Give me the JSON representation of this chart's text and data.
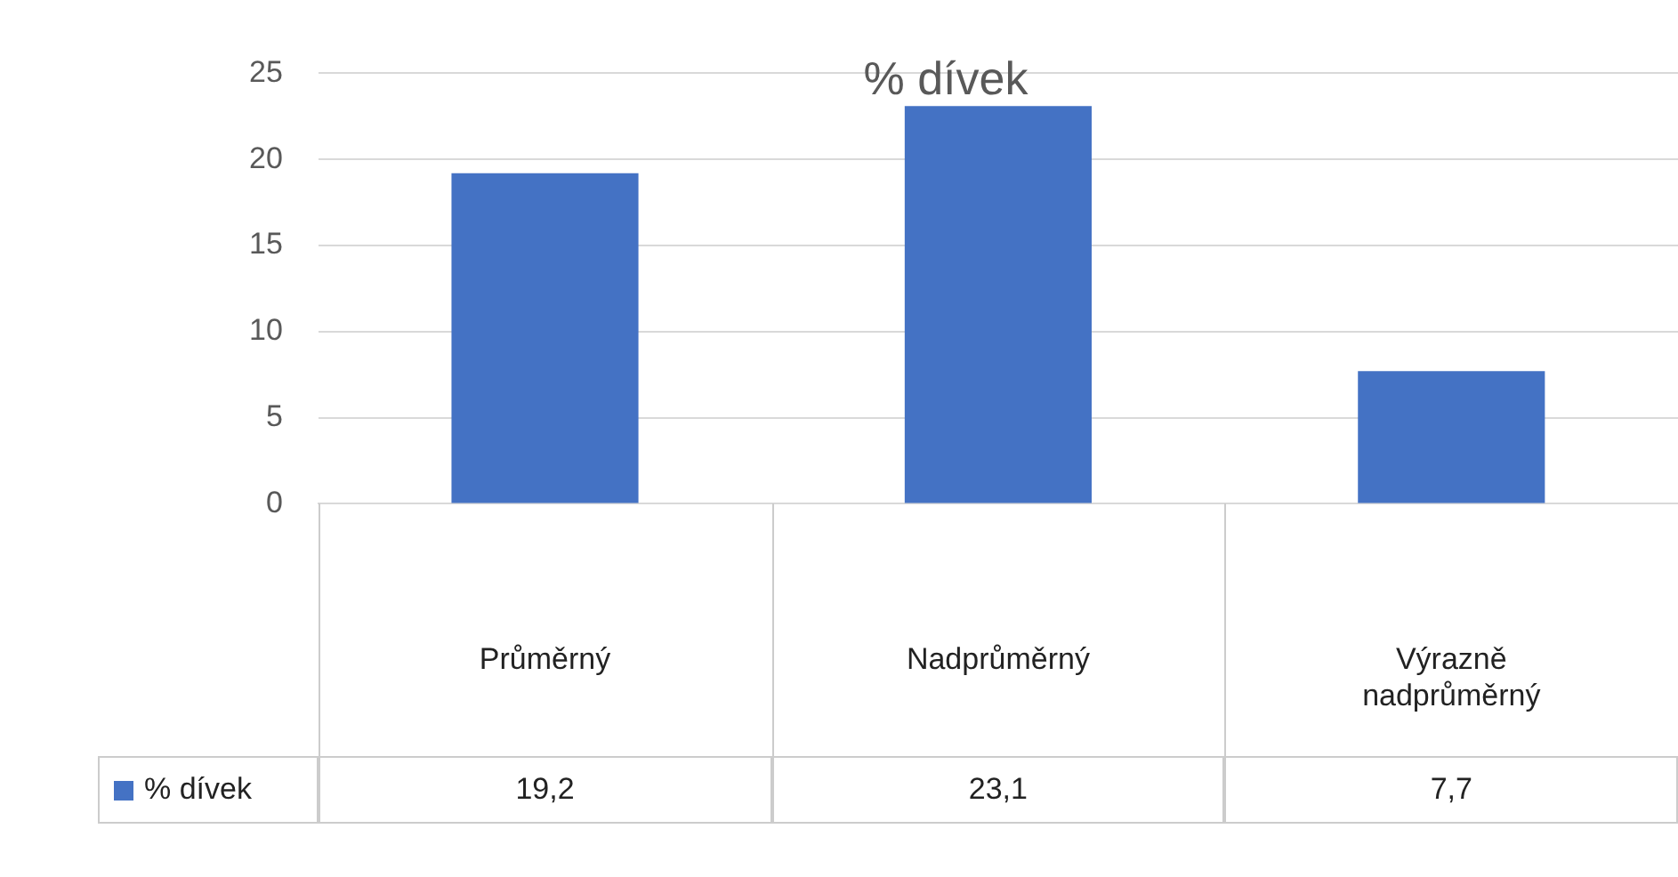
{
  "chart_data": {
    "type": "bar",
    "title": "% dívek",
    "categories": [
      "Průměrný",
      "Nadprůměrný",
      "Výrazně nadprůměrný"
    ],
    "series": [
      {
        "name": "% dívek",
        "color": "#4472c4",
        "values": [
          19.2,
          23.1,
          7.7
        ],
        "value_labels": [
          "19,2",
          "23,1",
          "7,7"
        ]
      }
    ],
    "ylim": [
      0,
      25
    ],
    "yticks": [
      0,
      5,
      10,
      15,
      20,
      25
    ],
    "grid": "y",
    "legend": "bottom"
  }
}
